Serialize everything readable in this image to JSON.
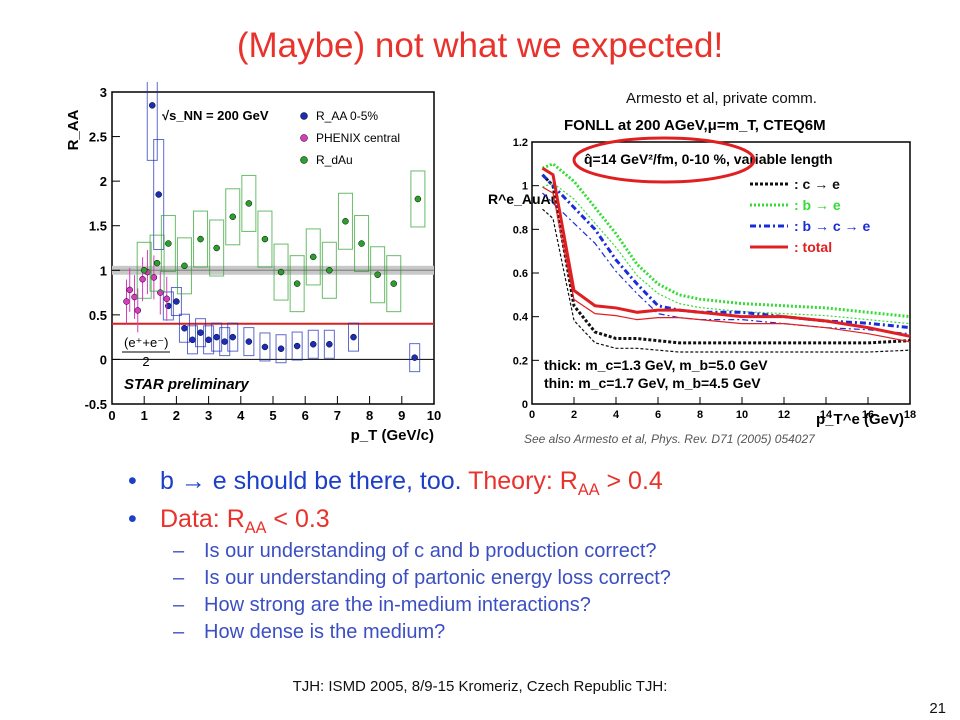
{
  "slide": {
    "title": "(Maybe) not what we expected!",
    "credit": "Armesto et al, private comm.",
    "see_also": "See also Armesto et al, Phys. Rev. D71 (2005) 054027",
    "footer": "TJH: ISMD 2005, 8/9-15 Kromeriz, Czech Republic TJH:",
    "page_number": "21"
  },
  "bullets": {
    "b1_text": "b ",
    "b1_arrow": "→",
    "b1_text2": " e should be there, too.  ",
    "b1_theory": "Theory:  R",
    "b1_sub": "AA",
    "b1_tail": " > 0.4",
    "b2_text": "Data:  R",
    "b2_sub": "AA",
    "b2_tail": " < 0.3",
    "subitems": [
      "Is our understanding of c and b production correct?",
      "Is our understanding of partonic energy loss correct?",
      "How strong are the in-medium interactions?",
      "How dense is the medium?"
    ]
  },
  "chart_data": [
    {
      "type": "scatter",
      "xlabel": "p_T (GeV/c)",
      "ylabel": "R_AA",
      "xlim": [
        0,
        10
      ],
      "ylim": [
        -0.5,
        3
      ],
      "xticks": [
        "0",
        "1",
        "2",
        "3",
        "4",
        "5",
        "6",
        "7",
        "8",
        "9",
        "10"
      ],
      "yticks": [
        "-0.5",
        "0",
        "0.5",
        "1",
        "1.5",
        "2",
        "2.5",
        "3"
      ],
      "energy_label": "√s_NN = 200 GeV",
      "preliminary_label": "STAR preliminary",
      "formula_label_top": "(e⁺+e⁻)",
      "formula_label_bottom": "2",
      "legend_position": "top-right",
      "series": [
        {
          "name": "R_AA 0-5%",
          "color": "#1a2cb8",
          "x": [
            1.25,
            1.45,
            1.75,
            2.0,
            2.25,
            2.5,
            2.75,
            3.0,
            3.25,
            3.5,
            3.75,
            4.25,
            4.75,
            5.25,
            5.75,
            6.25,
            6.75,
            7.5,
            9.4
          ],
          "y": [
            2.85,
            1.85,
            0.6,
            0.65,
            0.35,
            0.22,
            0.3,
            0.22,
            0.25,
            0.2,
            0.25,
            0.2,
            0.14,
            0.12,
            0.15,
            0.17,
            0.17,
            0.25,
            0.02
          ]
        },
        {
          "name": "PHENIX central",
          "color": "#d63bc0",
          "x": [
            0.45,
            0.55,
            0.7,
            0.8,
            0.95,
            1.1,
            1.3,
            1.5,
            1.7
          ],
          "y": [
            0.65,
            0.78,
            0.7,
            0.55,
            0.9,
            0.98,
            0.92,
            0.75,
            0.68
          ]
        },
        {
          "name": "R_dAu",
          "color": "#2aa02a",
          "x": [
            1.0,
            1.4,
            1.75,
            2.25,
            2.75,
            3.25,
            3.75,
            4.25,
            4.75,
            5.25,
            5.75,
            6.25,
            6.75,
            7.25,
            7.75,
            8.25,
            8.75,
            9.5
          ],
          "y": [
            1.0,
            1.08,
            1.3,
            1.05,
            1.35,
            1.25,
            1.6,
            1.75,
            1.35,
            0.98,
            0.85,
            1.15,
            1.0,
            1.55,
            1.3,
            0.95,
            0.85,
            1.8
          ]
        }
      ],
      "reference_lines": [
        {
          "y": 1.0,
          "style": "grey-band"
        },
        {
          "y": 0.4,
          "color": "#d92020"
        }
      ]
    },
    {
      "type": "line",
      "title": "FONLL at 200 AGeV,μ=m_T, CTEQ6M",
      "subtitle": "q̂=14 GeV²/fm, 0-10 %, variable length",
      "xlabel": "p_T^e (GeV)",
      "ylabel": "R^e_AuAu",
      "xlim": [
        0,
        18
      ],
      "ylim": [
        0,
        1.2
      ],
      "xticks": [
        "0",
        "2",
        "4",
        "6",
        "8",
        "10",
        "12",
        "14",
        "16",
        "18"
      ],
      "yticks": [
        "0",
        "0.2",
        "0.4",
        "0.6",
        "0.8",
        "1",
        "1.2"
      ],
      "thick_label": "thick: m_c=1.3 GeV, m_b=5.0 GeV",
      "thin_label": "thin: m_c=1.7 GeV, m_b=4.5 GeV",
      "legend_position": "top-right",
      "legend": [
        {
          "label": ": c → e",
          "color": "#111111"
        },
        {
          "label": ": b → e",
          "color": "#33dd33"
        },
        {
          "label": ": b → c → e",
          "color": "#1a2cd8"
        },
        {
          "label": ": total",
          "color": "#e02020"
        }
      ],
      "x": [
        0.5,
        1,
        2,
        3,
        4,
        5,
        6,
        7,
        8,
        10,
        12,
        14,
        16,
        18
      ],
      "series": [
        {
          "name": "c → e",
          "color": "#111111",
          "y": [
            1.05,
            1.0,
            0.45,
            0.33,
            0.3,
            0.3,
            0.29,
            0.28,
            0.28,
            0.28,
            0.28,
            0.28,
            0.28,
            0.29
          ]
        },
        {
          "name": "b → e",
          "color": "#33dd33",
          "y": [
            1.08,
            1.1,
            1.02,
            0.9,
            0.78,
            0.64,
            0.55,
            0.5,
            0.48,
            0.46,
            0.45,
            0.44,
            0.42,
            0.4
          ]
        },
        {
          "name": "b → c → e",
          "color": "#1a2cd8",
          "y": [
            1.05,
            1.0,
            0.9,
            0.8,
            0.66,
            0.55,
            0.45,
            0.43,
            0.42,
            0.42,
            0.4,
            0.38,
            0.37,
            0.35
          ]
        },
        {
          "name": "total",
          "color": "#e02020",
          "y": [
            1.08,
            1.05,
            0.52,
            0.45,
            0.44,
            0.42,
            0.43,
            0.43,
            0.42,
            0.4,
            0.4,
            0.38,
            0.35,
            0.31
          ]
        }
      ]
    }
  ]
}
